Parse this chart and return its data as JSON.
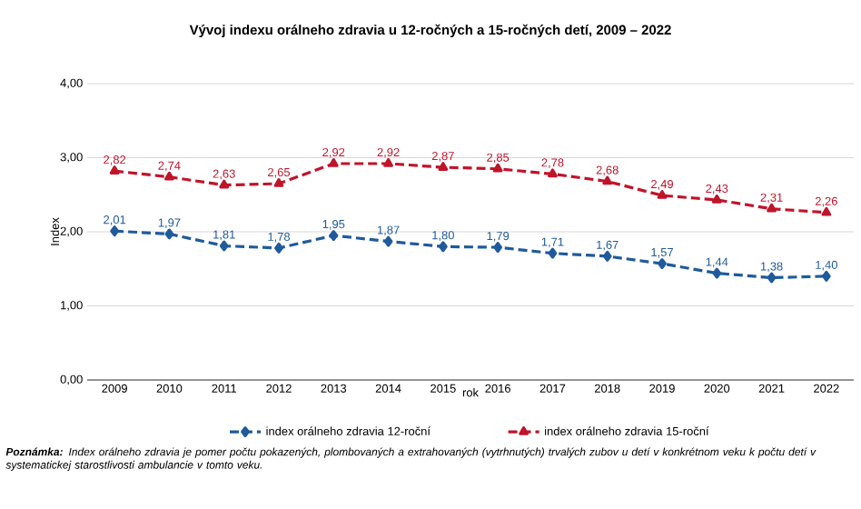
{
  "chart_data": {
    "type": "line",
    "title": "Vývoj  indexu orálneho zdravia u 12-ročných  a 15-ročných  detí, 2009 – 2022",
    "xlabel": "rok",
    "ylabel": "Index",
    "categories": [
      "2009",
      "2010",
      "2011",
      "2012",
      "2013",
      "2014",
      "2015",
      "2016",
      "2017",
      "2018",
      "2019",
      "2020",
      "2021",
      "2022"
    ],
    "series": [
      {
        "name": "index orálneho zdravia 12-roční",
        "color": "#1f5a9c",
        "marker": "diamond",
        "line_style": "dashed",
        "values": [
          2.01,
          1.97,
          1.81,
          1.78,
          1.95,
          1.87,
          1.8,
          1.79,
          1.71,
          1.67,
          1.57,
          1.44,
          1.38,
          1.4
        ],
        "value_labels": [
          "2,01",
          "1,97",
          "1,81",
          "1,78",
          "1,95",
          "1,87",
          "1,80",
          "1,79",
          "1,71",
          "1,67",
          "1,57",
          "1,44",
          "1,38",
          "1,40"
        ]
      },
      {
        "name": "index orálneho zdravia 15-roční",
        "color": "#c0142a",
        "marker": "triangle",
        "line_style": "dashed",
        "values": [
          2.82,
          2.74,
          2.63,
          2.65,
          2.92,
          2.92,
          2.87,
          2.85,
          2.78,
          2.68,
          2.49,
          2.43,
          2.31,
          2.26
        ],
        "value_labels": [
          "2,82",
          "2,74",
          "2,63",
          "2,65",
          "2,92",
          "2,92",
          "2,87",
          "2,85",
          "2,78",
          "2,68",
          "2,49",
          "2,43",
          "2,31",
          "2,26"
        ]
      }
    ],
    "ylim": [
      0,
      4
    ],
    "yticks": [
      {
        "value": 0,
        "label": "0,00"
      },
      {
        "value": 1,
        "label": "1,00"
      },
      {
        "value": 2,
        "label": "2,00"
      },
      {
        "value": 3,
        "label": "3,00"
      },
      {
        "value": 4,
        "label": "4,00"
      }
    ],
    "grid": "y",
    "legend": "bottom",
    "annotations": [
      "**Poznámka:** Index orálneho zdravia je pomer počtu pokazených, plombovaných a extrahovaných (vytrhnutých) trvalých zubov u detí v konkrétnom veku k počtu detí v  systematickej starostlivosti ambulancie v tomto veku."
    ]
  }
}
